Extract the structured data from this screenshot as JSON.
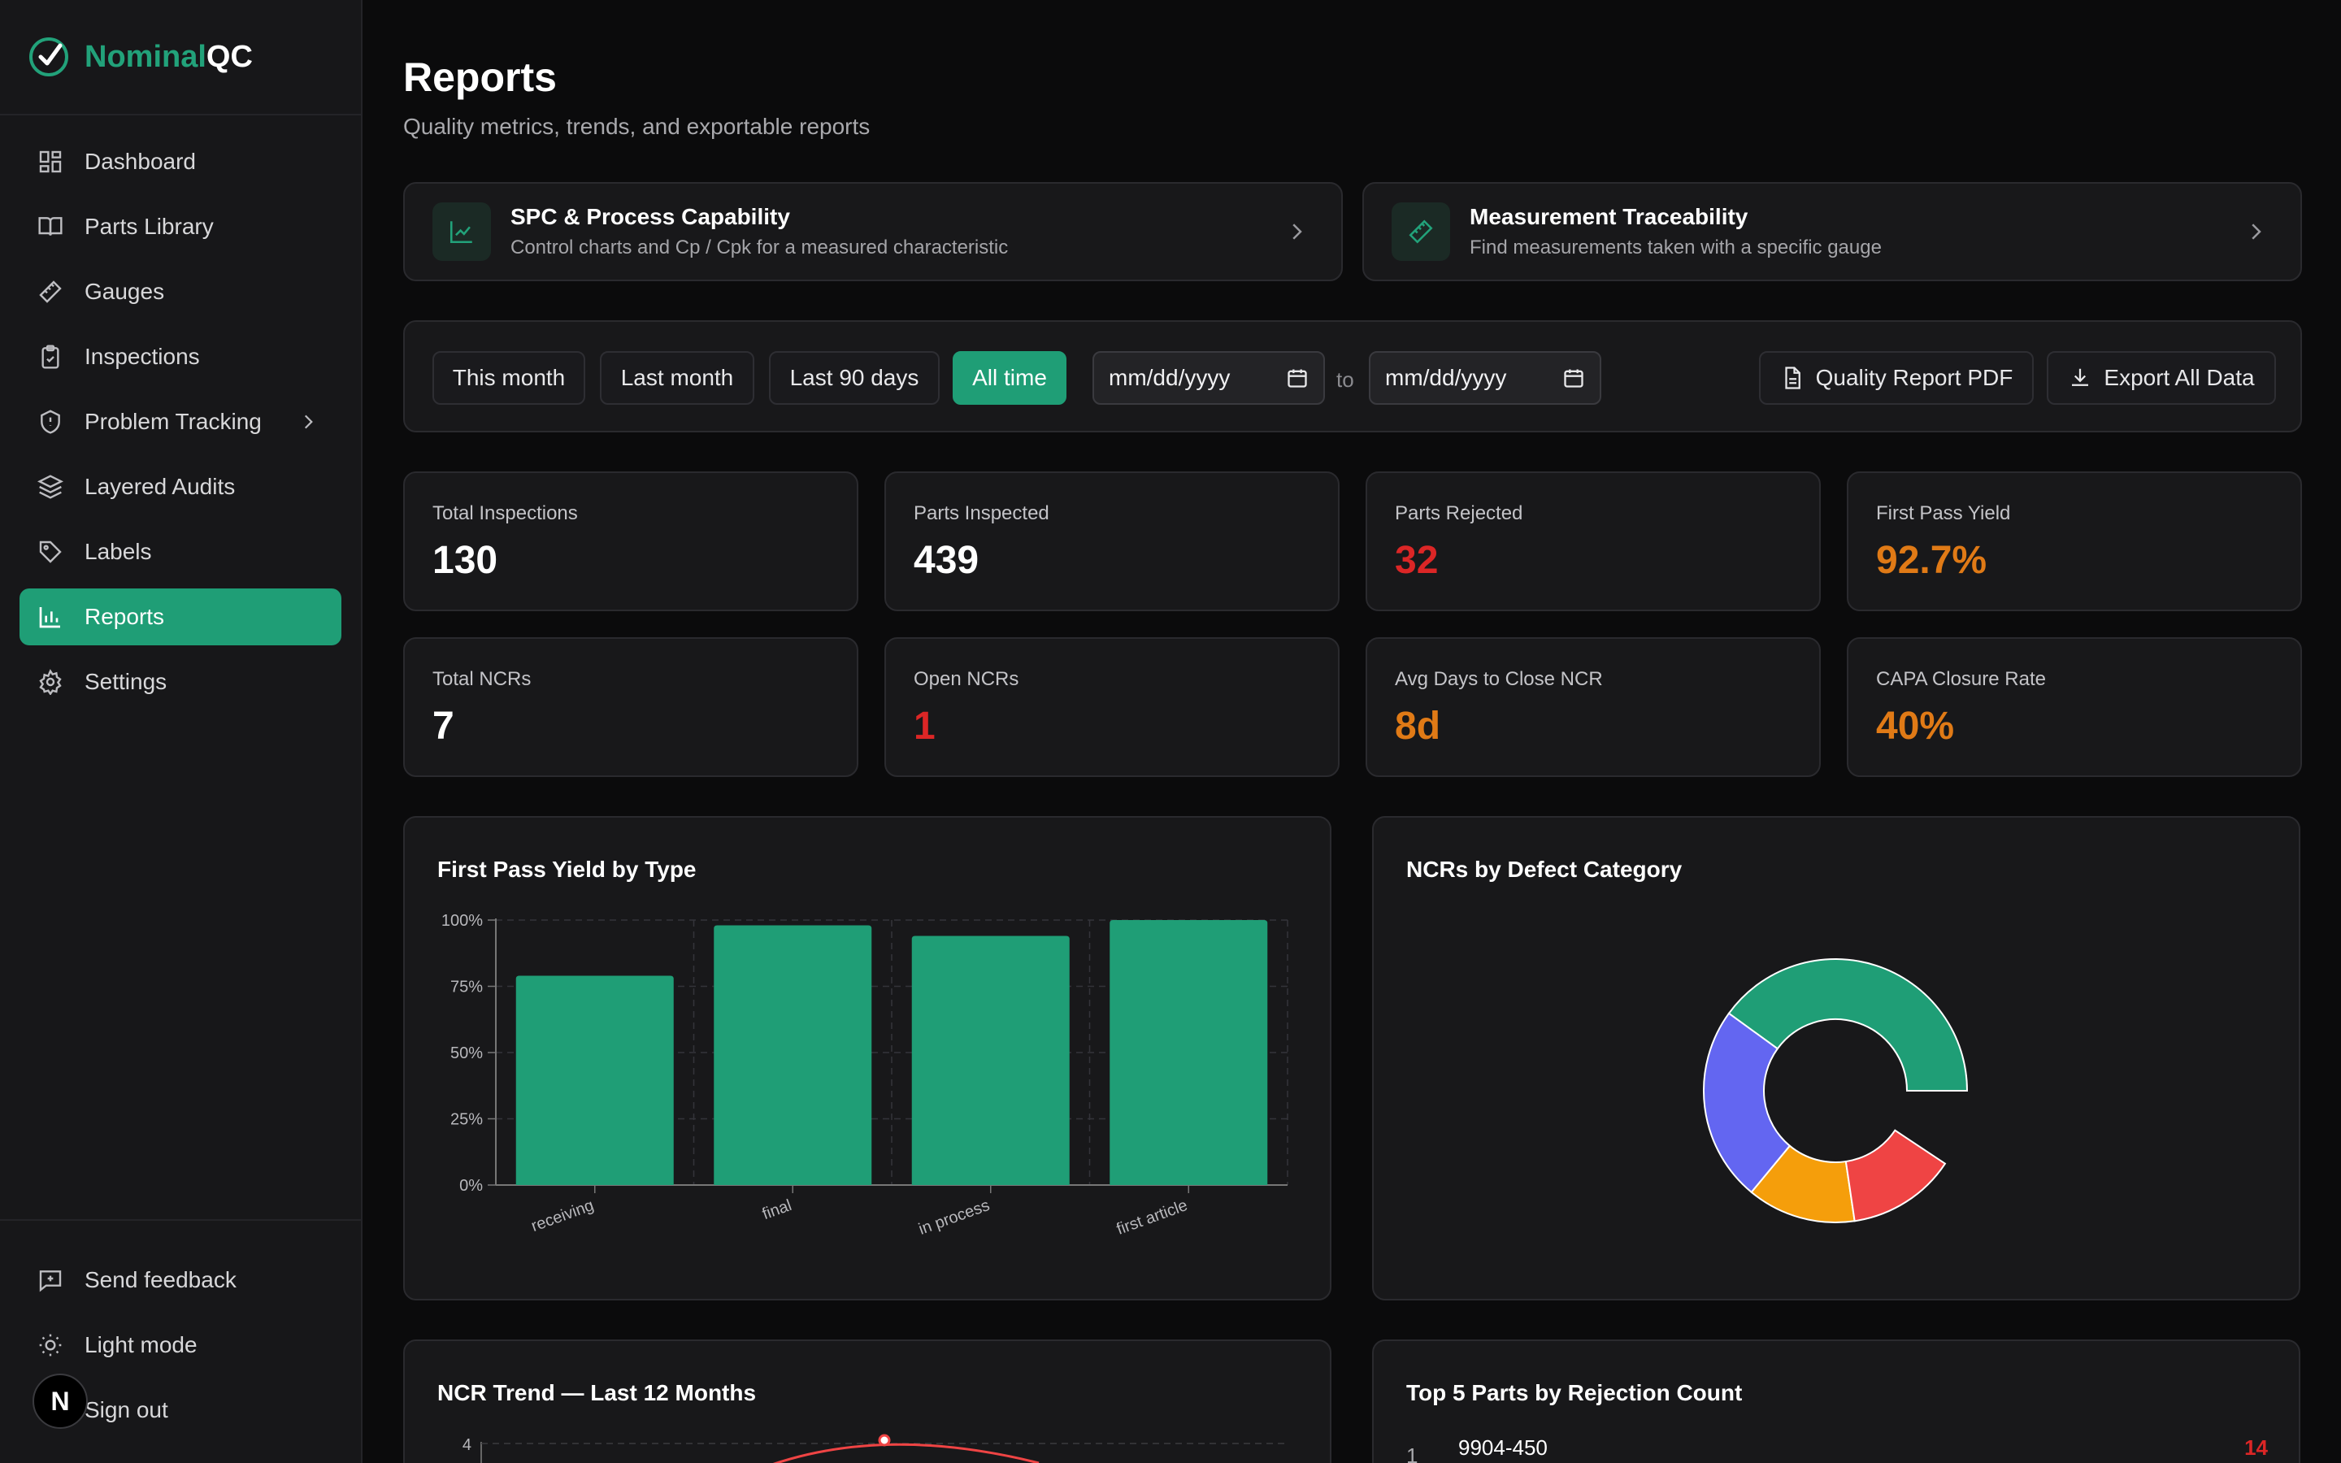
{
  "brand": {
    "name_part1": "Nominal",
    "name_part2": "QC"
  },
  "sidebar": {
    "items": [
      {
        "label": "Dashboard",
        "icon": "dashboard-icon"
      },
      {
        "label": "Parts Library",
        "icon": "book-icon"
      },
      {
        "label": "Gauges",
        "icon": "ruler-icon"
      },
      {
        "label": "Inspections",
        "icon": "clipboard-check-icon"
      },
      {
        "label": "Problem Tracking",
        "icon": "shield-icon"
      },
      {
        "label": "Layered Audits",
        "icon": "layers-icon"
      },
      {
        "label": "Labels",
        "icon": "tag-icon"
      },
      {
        "label": "Reports",
        "icon": "bar-chart-icon",
        "active": true
      },
      {
        "label": "Settings",
        "icon": "gear-icon"
      }
    ],
    "bottom": [
      {
        "label": "Send feedback",
        "icon": "feedback-icon"
      },
      {
        "label": "Light mode",
        "icon": "sun-icon"
      },
      {
        "label": "Sign out",
        "icon": "sign-out-icon"
      }
    ],
    "avatar_letter": "N"
  },
  "header": {
    "title": "Reports",
    "subtitle": "Quality metrics, trends, and exportable reports"
  },
  "links": [
    {
      "title": "SPC & Process Capability",
      "desc": "Control charts and Cp / Cpk for a measured characteristic",
      "icon": "line-chart-icon"
    },
    {
      "title": "Measurement Traceability",
      "desc": "Find measurements taken with a specific gauge",
      "icon": "ruler-icon"
    }
  ],
  "filters": {
    "ranges": [
      "This month",
      "Last month",
      "Last 90 days",
      "All time"
    ],
    "active_range": "All time",
    "from_placeholder": "mm/dd/yyyy",
    "to_label": "to",
    "to_placeholder": "mm/dd/yyyy",
    "pdf_button": "Quality Report PDF",
    "export_button": "Export All Data"
  },
  "stats": [
    {
      "label": "Total Inspections",
      "value": "130",
      "tone": "white"
    },
    {
      "label": "Parts Inspected",
      "value": "439",
      "tone": "white"
    },
    {
      "label": "Parts Rejected",
      "value": "32",
      "tone": "red"
    },
    {
      "label": "First Pass Yield",
      "value": "92.7%",
      "tone": "orange"
    },
    {
      "label": "Total NCRs",
      "value": "7",
      "tone": "white"
    },
    {
      "label": "Open NCRs",
      "value": "1",
      "tone": "red"
    },
    {
      "label": "Avg Days to Close NCR",
      "value": "8d",
      "tone": "orange"
    },
    {
      "label": "CAPA Closure Rate",
      "value": "40%",
      "tone": "orange"
    }
  ],
  "colors": {
    "accent": "#1f9e76",
    "red": "#dc2626",
    "orange": "#e07a16"
  },
  "chart_data": [
    {
      "type": "bar",
      "title": "First Pass Yield by Type",
      "categories": [
        "receiving",
        "final",
        "in process",
        "first article"
      ],
      "values": [
        79,
        98,
        94,
        100
      ],
      "yticks": [
        "0%",
        "25%",
        "50%",
        "75%",
        "100%"
      ],
      "ylim": [
        0,
        100
      ],
      "color": "#1f9e76",
      "grid": true
    },
    {
      "type": "pie",
      "title": "NCRs by Defect Category",
      "style": "donut",
      "slices": [
        {
          "value": 3,
          "color": "#1f9e76"
        },
        {
          "value": 0.7,
          "color": "#ffffff00"
        },
        {
          "value": 1,
          "color": "#ef4444"
        },
        {
          "value": 1,
          "color": "#f59e0b"
        },
        {
          "value": 1.8,
          "color": "#6366f1"
        }
      ]
    },
    {
      "type": "line",
      "title": "NCR Trend — Last 12 Months",
      "ytick_top": "4"
    },
    {
      "type": "table",
      "title": "Top 5 Parts by Rejection Count",
      "rows": [
        {
          "rank": "1",
          "part": "9904-450",
          "count": "14"
        }
      ]
    }
  ]
}
